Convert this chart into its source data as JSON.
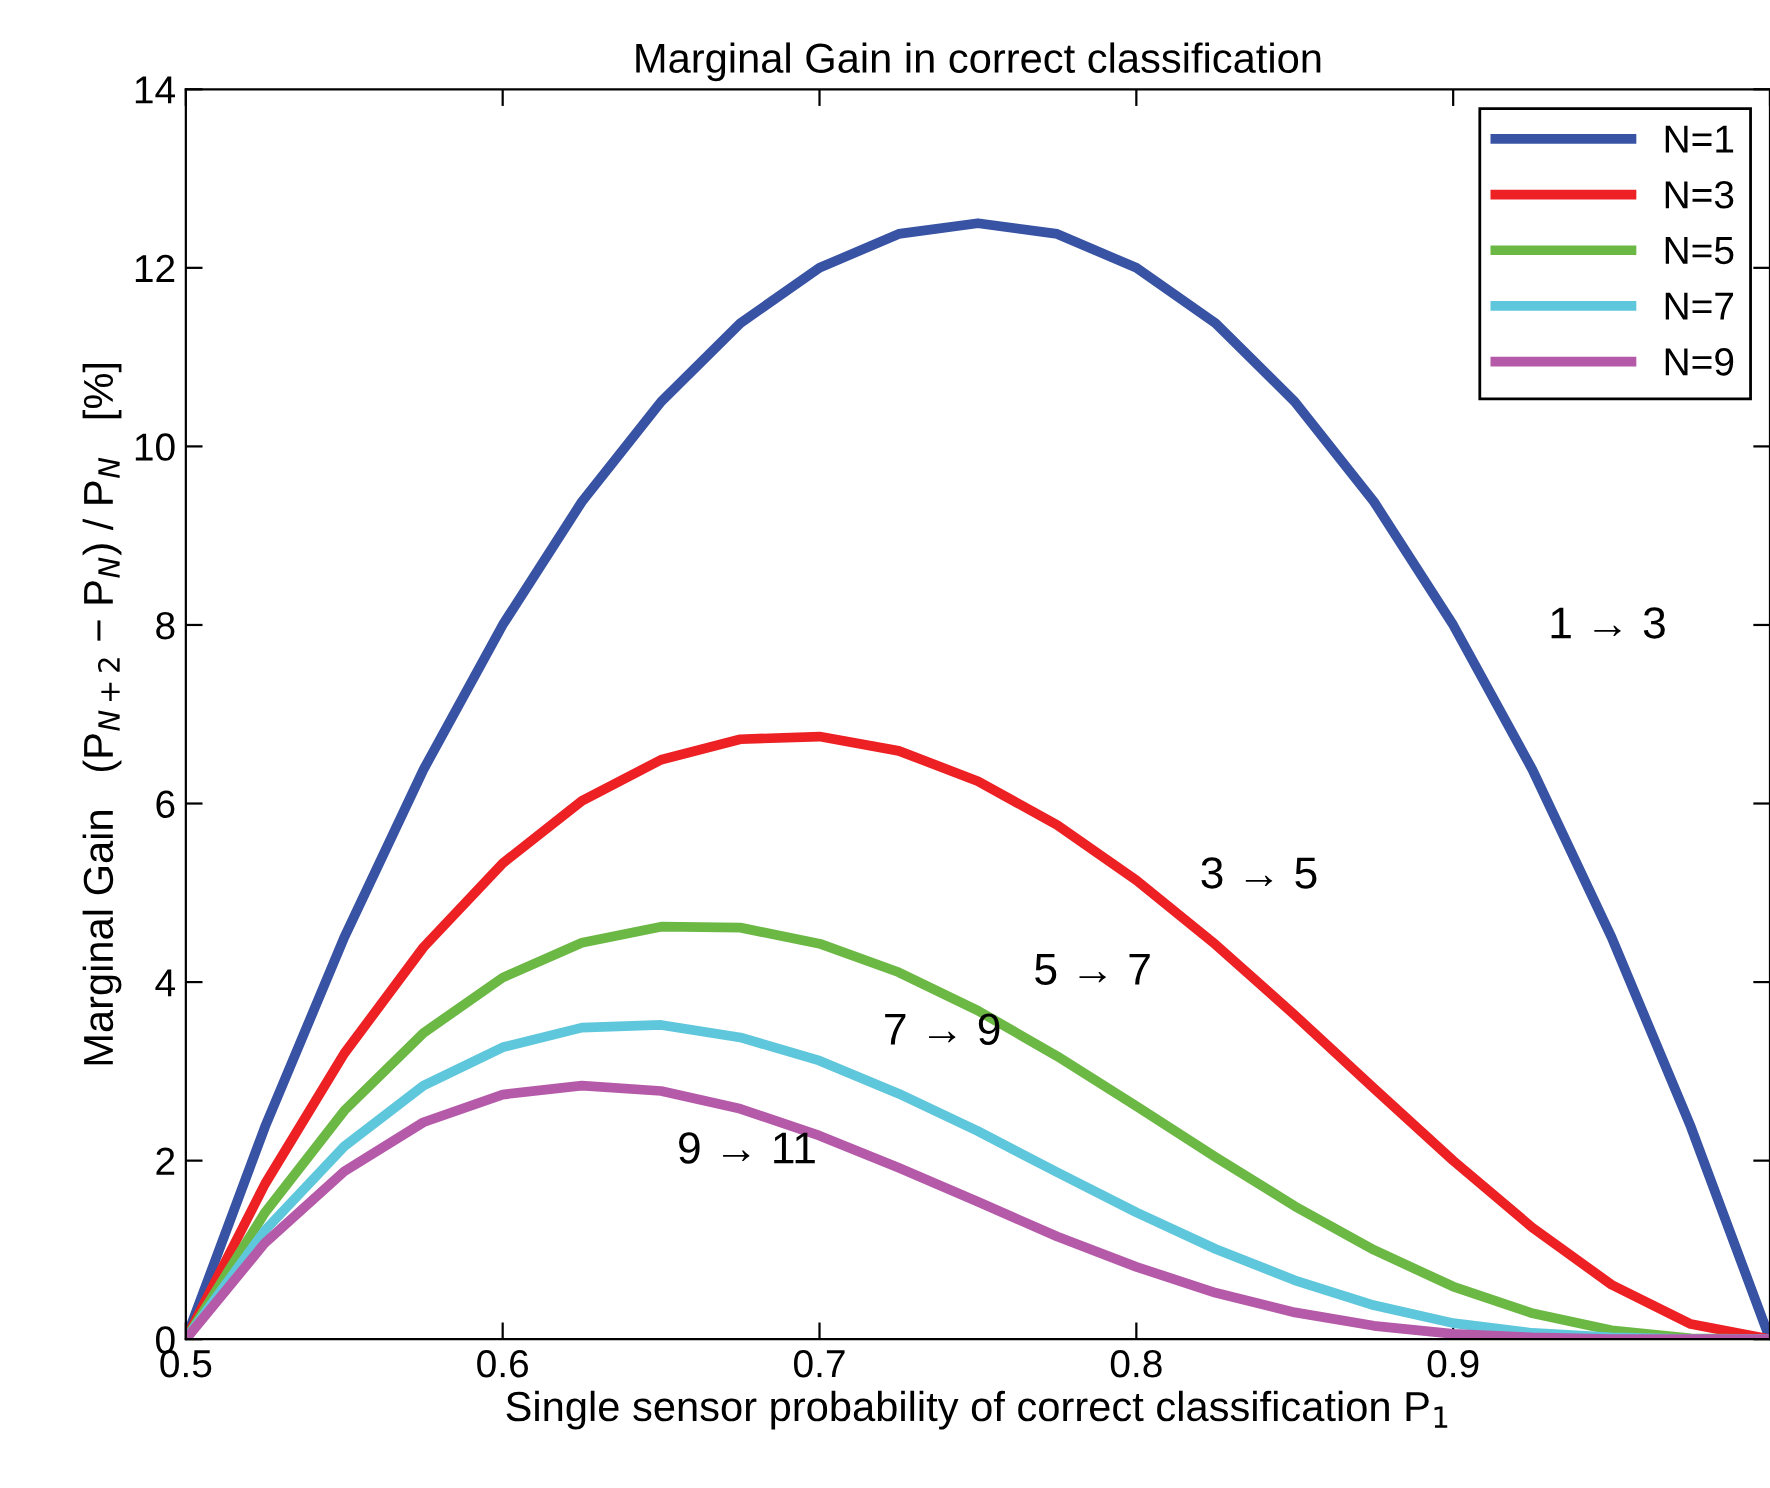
{
  "chart_data": {
    "type": "line",
    "title": "Marginal Gain in correct classification",
    "xlabel": "Single sensor probability of correct classification P$_{1}$",
    "ylabel": "Marginal Gain   (P$_{N+2}$ − P$_{N}$) / P$_{N}$   [%]",
    "x": [
      0.5,
      0.525,
      0.55,
      0.575,
      0.6,
      0.625,
      0.65,
      0.675,
      0.7,
      0.725,
      0.75,
      0.775,
      0.8,
      0.825,
      0.85,
      0.875,
      0.9,
      0.925,
      0.95,
      0.975,
      1.0
    ],
    "series": [
      {
        "name": "N=1",
        "color": "#3953a4",
        "values": [
          0,
          2.38,
          4.5,
          6.38,
          8,
          9.38,
          10.5,
          11.38,
          12,
          12.38,
          12.5,
          12.38,
          12,
          11.38,
          10.5,
          9.38,
          8,
          6.38,
          4.5,
          2.38,
          0
        ]
      },
      {
        "name": "N=3",
        "color": "#ed2024",
        "values": [
          0,
          1.74,
          3.2,
          4.39,
          5.33,
          6.03,
          6.49,
          6.72,
          6.75,
          6.59,
          6.25,
          5.76,
          5.14,
          4.42,
          3.63,
          2.81,
          2.0,
          1.25,
          0.61,
          0.17,
          0
        ]
      },
      {
        "name": "N=5",
        "color": "#6cb845",
        "values": [
          0,
          1.42,
          2.56,
          3.43,
          4.05,
          4.44,
          4.62,
          4.61,
          4.43,
          4.11,
          3.68,
          3.17,
          2.61,
          2.04,
          1.49,
          1.0,
          0.59,
          0.29,
          0.1,
          0.01,
          0
        ]
      },
      {
        "name": "N=7",
        "color": "#5fc7dc",
        "values": [
          0,
          1.22,
          2.16,
          2.84,
          3.27,
          3.49,
          3.52,
          3.38,
          3.12,
          2.75,
          2.33,
          1.87,
          1.42,
          1.01,
          0.66,
          0.38,
          0.18,
          0.07,
          0.02,
          0,
          0
        ]
      },
      {
        "name": "N=9",
        "color": "#b55aa8",
        "values": [
          0,
          1.08,
          1.88,
          2.43,
          2.74,
          2.84,
          2.78,
          2.58,
          2.28,
          1.92,
          1.54,
          1.15,
          0.81,
          0.52,
          0.3,
          0.15,
          0.06,
          0.02,
          0,
          0,
          0
        ]
      }
    ],
    "annotations": [
      "1 → 3",
      "3 → 5",
      "5 → 7",
      "7 → 9",
      "9 → 11"
    ],
    "xlim": [
      0.5,
      1.0
    ],
    "xticks": [
      0.5,
      0.6,
      0.7,
      0.8,
      0.9,
      {
        "value": 1.0,
        "label": null
      }
    ],
    "ylim": [
      0,
      14
    ],
    "yticks": [
      0,
      2,
      4,
      6,
      8,
      10,
      12,
      14
    ],
    "grid": false,
    "legend": "top right",
    "marker": "none",
    "line_style": "solid"
  }
}
